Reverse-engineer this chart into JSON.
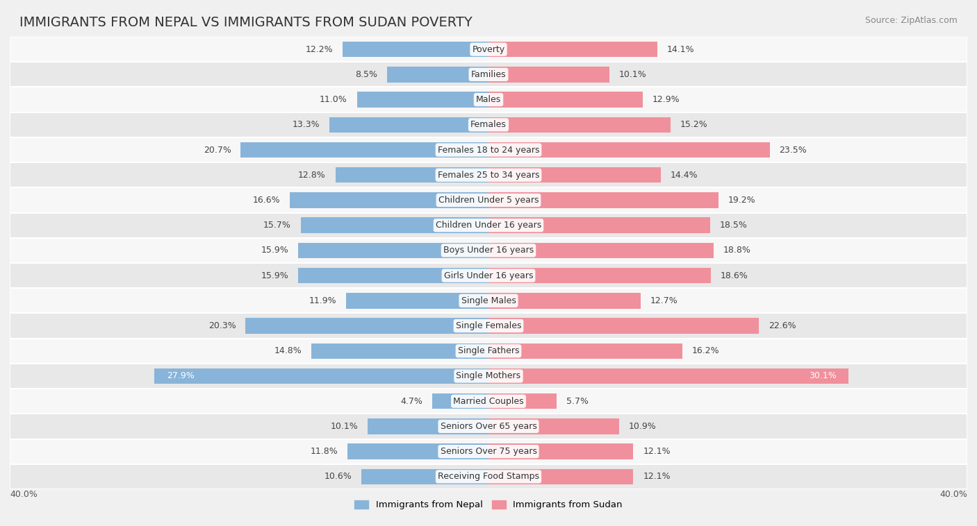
{
  "title": "IMMIGRANTS FROM NEPAL VS IMMIGRANTS FROM SUDAN POVERTY",
  "source": "Source: ZipAtlas.com",
  "categories": [
    "Poverty",
    "Families",
    "Males",
    "Females",
    "Females 18 to 24 years",
    "Females 25 to 34 years",
    "Children Under 5 years",
    "Children Under 16 years",
    "Boys Under 16 years",
    "Girls Under 16 years",
    "Single Males",
    "Single Females",
    "Single Fathers",
    "Single Mothers",
    "Married Couples",
    "Seniors Over 65 years",
    "Seniors Over 75 years",
    "Receiving Food Stamps"
  ],
  "nepal_values": [
    12.2,
    8.5,
    11.0,
    13.3,
    20.7,
    12.8,
    16.6,
    15.7,
    15.9,
    15.9,
    11.9,
    20.3,
    14.8,
    27.9,
    4.7,
    10.1,
    11.8,
    10.6
  ],
  "sudan_values": [
    14.1,
    10.1,
    12.9,
    15.2,
    23.5,
    14.4,
    19.2,
    18.5,
    18.8,
    18.6,
    12.7,
    22.6,
    16.2,
    30.1,
    5.7,
    10.9,
    12.1,
    12.1
  ],
  "nepal_color": "#89b4d9",
  "sudan_color": "#f0909c",
  "bar_height": 0.62,
  "xlim_half": 40.0,
  "legend_nepal": "Immigrants from Nepal",
  "legend_sudan": "Immigrants from Sudan",
  "bg_color": "#f0f0f0",
  "row_color_light": "#f7f7f7",
  "row_color_dark": "#e8e8e8",
  "title_fontsize": 14,
  "value_fontsize": 9,
  "category_fontsize": 9,
  "source_fontsize": 9
}
